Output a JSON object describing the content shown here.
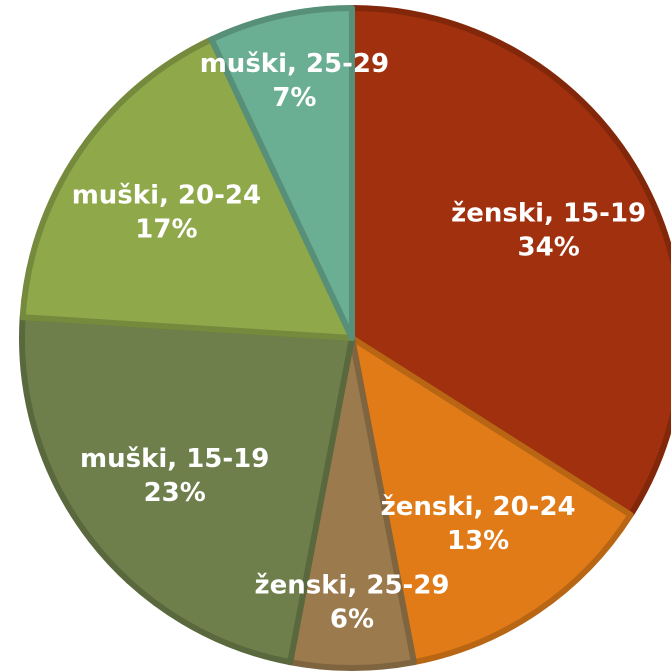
{
  "chart_data": {
    "type": "pie",
    "categories": [
      "ženski, 15-19",
      "ženski, 20-24",
      "ženski, 25-29",
      "muški, 15-19",
      "muški, 20-24",
      "muški, 25-29"
    ],
    "values": [
      34,
      13,
      6,
      23,
      17,
      7
    ],
    "value_labels": [
      "34%",
      "13%",
      "6%",
      "23%",
      "17%",
      "7%"
    ],
    "colors": [
      "#a0300e",
      "#e07b18",
      "#9b7a4e",
      "#6e7f4c",
      "#8fa84a",
      "#6aae94"
    ]
  }
}
